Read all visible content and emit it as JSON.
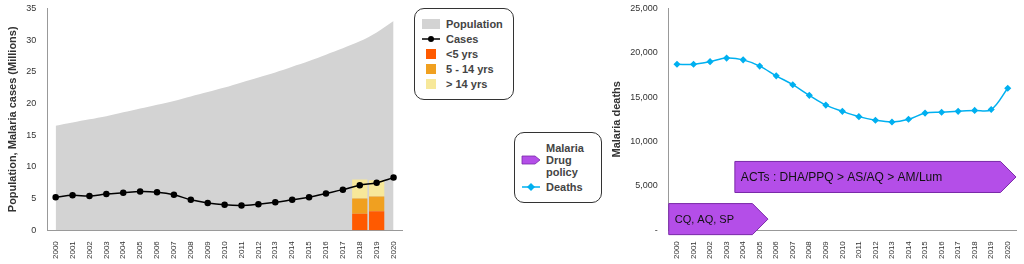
{
  "chart_data": [
    {
      "type": "line",
      "y_label": "Population, Malaria cases (Millions)",
      "categories": [
        "2000",
        "2001",
        "2002",
        "2003",
        "2004",
        "2005",
        "2006",
        "2007",
        "2008",
        "2009",
        "2010",
        "2011",
        "2012",
        "2013",
        "2014",
        "2015",
        "2016",
        "2017",
        "2018",
        "2019",
        "2020"
      ],
      "ylim": [
        0,
        35
      ],
      "yticks": [
        0,
        5,
        10,
        15,
        20,
        25,
        30,
        35
      ],
      "grid": false,
      "stacked": true,
      "legend": "right",
      "series": [
        {
          "name": "Population",
          "type": "area",
          "color": "#d3d3d3",
          "values": [
            16.5,
            17.0,
            17.5,
            18.0,
            18.6,
            19.2,
            19.8,
            20.4,
            21.1,
            21.8,
            22.5,
            23.3,
            24.1,
            24.9,
            25.8,
            26.7,
            27.7,
            28.7,
            29.8,
            31.2,
            33.0
          ]
        },
        {
          "name": "Cases",
          "type": "line",
          "color": "#000000",
          "marker": "circle",
          "values": [
            5.2,
            5.5,
            5.4,
            5.7,
            5.9,
            6.1,
            6.0,
            5.6,
            4.8,
            4.3,
            4.0,
            3.9,
            4.1,
            4.4,
            4.8,
            5.2,
            5.8,
            6.4,
            7.1,
            7.5,
            8.3
          ]
        },
        {
          "name": "<5 yrs",
          "type": "bar",
          "color": "#ff5a00",
          "values": [
            null,
            null,
            null,
            null,
            null,
            null,
            null,
            null,
            null,
            null,
            null,
            null,
            null,
            null,
            null,
            null,
            null,
            null,
            2.6,
            3.0,
            null
          ]
        },
        {
          "name": "5 - 14 yrs",
          "type": "bar",
          "color": "#f0a020",
          "values": [
            null,
            null,
            null,
            null,
            null,
            null,
            null,
            null,
            null,
            null,
            null,
            null,
            null,
            null,
            null,
            null,
            null,
            null,
            2.4,
            2.3,
            null
          ]
        },
        {
          "name": "> 14 yrs",
          "type": "bar",
          "color": "#f7e89a",
          "values": [
            null,
            null,
            null,
            null,
            null,
            null,
            null,
            null,
            null,
            null,
            null,
            null,
            null,
            null,
            null,
            null,
            null,
            null,
            3.0,
            2.6,
            null
          ]
        }
      ]
    },
    {
      "type": "line",
      "y_label": "Malaria deaths",
      "categories": [
        "2000",
        "2001",
        "2002",
        "2003",
        "2004",
        "2005",
        "2006",
        "2007",
        "2008",
        "2009",
        "2010",
        "2011",
        "2012",
        "2013",
        "2014",
        "2015",
        "2016",
        "2017",
        "2018",
        "2019",
        "2020"
      ],
      "ylim": [
        0,
        25000
      ],
      "yticks": [
        {
          "value": 0,
          "label": "-"
        },
        {
          "value": 5000,
          "label": "5,000"
        },
        {
          "value": 10000,
          "label": "10,000"
        },
        {
          "value": 15000,
          "label": "15,000"
        },
        {
          "value": 20000,
          "label": "20,000"
        },
        {
          "value": 25000,
          "label": "25,000"
        }
      ],
      "grid": false,
      "legend": "left",
      "series": [
        {
          "name": "Deaths",
          "type": "line",
          "color": "#00b0f0",
          "marker": "diamond",
          "values": [
            18700,
            18700,
            19000,
            19400,
            19200,
            18500,
            17400,
            16400,
            15200,
            14100,
            13400,
            12800,
            12400,
            12200,
            12500,
            13200,
            13300,
            13400,
            13500,
            13600,
            16000
          ]
        }
      ],
      "annotations": {
        "name": "Malaria Drug policy",
        "color": "#b44ee8",
        "items": [
          {
            "text": "CQ, AQ, SP",
            "from": "2000",
            "to": "2005"
          },
          {
            "text": "ACTs : DHA/PPQ > AS/AQ > AM/Lum",
            "from": "2004",
            "to": "2020"
          }
        ]
      }
    }
  ]
}
